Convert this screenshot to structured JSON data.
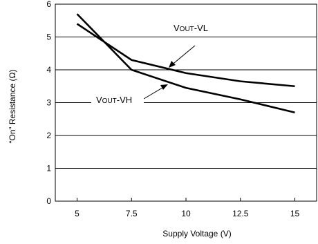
{
  "chart_data": {
    "type": "line",
    "title": "",
    "xlabel": "Supply Voltage (V)",
    "ylabel": "“On” Resistance (Ω)",
    "xlim": [
      4,
      16
    ],
    "ylim": [
      0,
      6
    ],
    "xticks": [
      5,
      7.5,
      10,
      12.5,
      15
    ],
    "xtick_labels": [
      "5",
      "7.5",
      "10",
      "12.5",
      "15"
    ],
    "yticks": [
      0,
      1,
      2,
      3,
      4,
      5,
      6
    ],
    "ytick_labels": [
      "0",
      "1",
      "2",
      "3",
      "4",
      "5",
      "6"
    ],
    "grid": "horizontal",
    "series": [
      {
        "name": "VOUT-VL",
        "x": [
          5,
          7.5,
          10,
          12.5,
          15
        ],
        "y": [
          5.4,
          4.3,
          3.9,
          3.65,
          3.5
        ]
      },
      {
        "name": "VOUT-VH",
        "x": [
          5,
          7.5,
          10,
          12.5,
          15
        ],
        "y": [
          5.7,
          4.0,
          3.45,
          3.1,
          2.7
        ]
      }
    ],
    "labels": [
      {
        "prefix": "V",
        "sub": "OUT",
        "suffix": "-VL"
      },
      {
        "prefix": "V",
        "sub": "OUT",
        "suffix": "-VH"
      }
    ]
  }
}
